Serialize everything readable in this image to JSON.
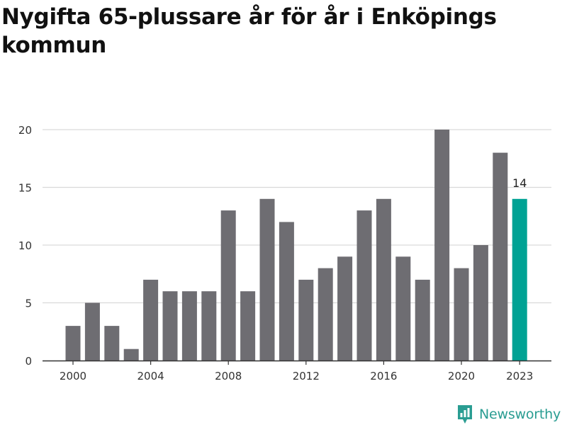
{
  "title": "Nygifta 65-plussare år för år i Enköpings kommun",
  "brand": {
    "name": "Newsworthy",
    "color": "#2a9d92"
  },
  "colors": {
    "bar": "#6e6d72",
    "highlight": "#00a294",
    "grid": "#d9d9d9",
    "axis": "#333333",
    "text": "#333333"
  },
  "chart_data": {
    "type": "bar",
    "title": "Nygifta 65-plussare år för år i Enköpings kommun",
    "xlabel": "",
    "ylabel": "",
    "categories": [
      2000,
      2001,
      2002,
      2003,
      2004,
      2005,
      2006,
      2007,
      2008,
      2009,
      2010,
      2011,
      2012,
      2013,
      2014,
      2015,
      2016,
      2017,
      2018,
      2019,
      2020,
      2021,
      2022,
      2023
    ],
    "values": [
      3,
      5,
      3,
      1,
      7,
      6,
      6,
      6,
      13,
      6,
      14,
      12,
      7,
      8,
      9,
      13,
      14,
      9,
      7,
      20,
      8,
      10,
      18,
      14
    ],
    "ylim": [
      0,
      20
    ],
    "yticks": [
      0,
      5,
      10,
      15,
      20
    ],
    "xticks": [
      "2000",
      "2004",
      "2008",
      "2012",
      "2016",
      "2020",
      "2023"
    ],
    "highlight": {
      "category": 2023,
      "label": "14"
    },
    "grid": true
  }
}
